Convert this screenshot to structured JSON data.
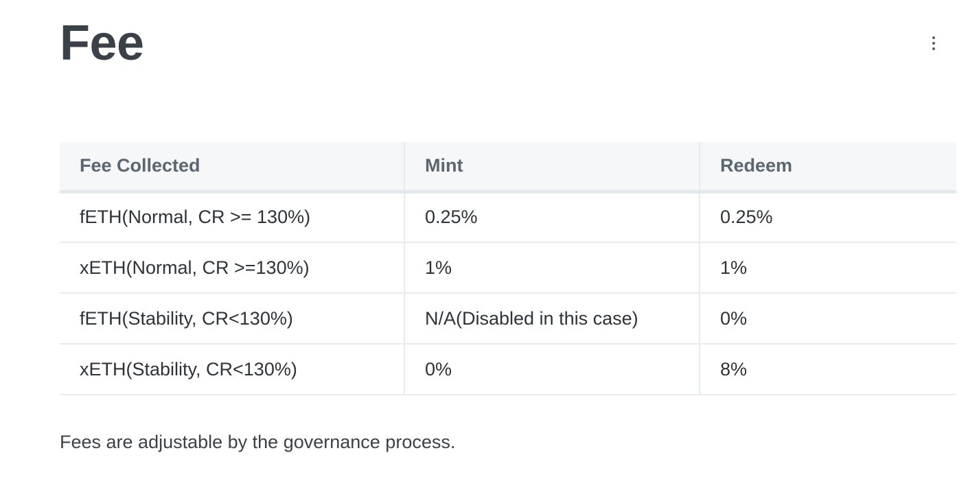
{
  "page": {
    "title": "Fee"
  },
  "toolbar": {
    "more_icon": "vertical-ellipsis"
  },
  "table": {
    "headers": [
      "Fee Collected",
      "Mint",
      "Redeem"
    ],
    "rows": [
      [
        "fETH(Normal, CR >= 130%)",
        "0.25%",
        "0.25%"
      ],
      [
        "xETH(Normal, CR >=130%)",
        "1%",
        "1%"
      ],
      [
        "fETH(Stability, CR<130%)",
        "N/A(Disabled in this case)",
        "0%"
      ],
      [
        "xETH(Stability, CR<130%)",
        "0%",
        "8%"
      ]
    ]
  },
  "footnote": "Fees are adjustable by the governance process.",
  "colors": {
    "title": "#3b4148",
    "header_bg": "#f5f7f9",
    "header_text": "#5c6670",
    "border": "#e8ebee"
  }
}
